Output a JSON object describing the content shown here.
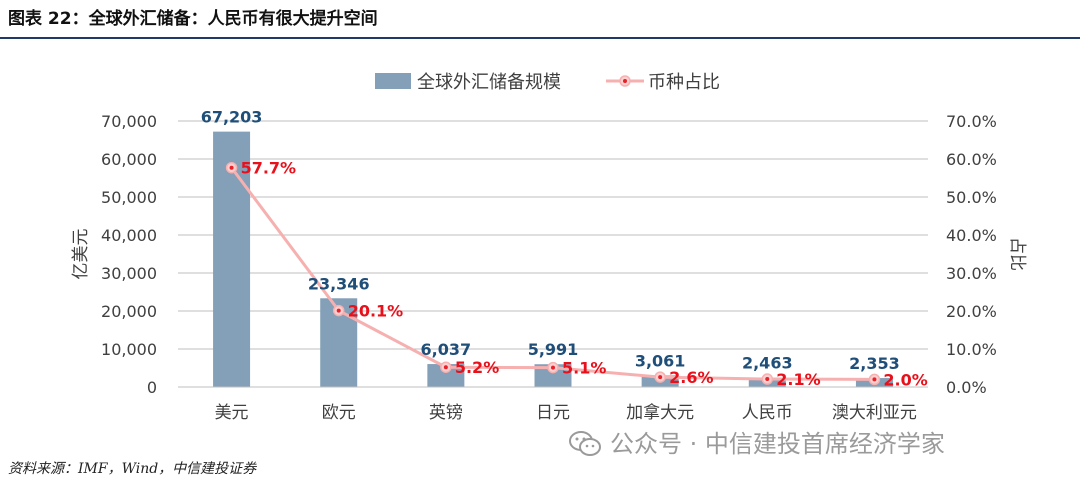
{
  "header": {
    "title": "图表 22：全球外汇储备：人民币有很大提升空间"
  },
  "footer": {
    "source": "资料来源：IMF，Wind，中信建投证券",
    "watermark": "公众号 · 中信建投首席经济学家"
  },
  "colors": {
    "bar": "#849fb8",
    "line": "#f7b0b0",
    "marker": "#e8222a",
    "bar_label": "#1f4e79",
    "pct_label": "#e8101a",
    "rule": "#1f3a68"
  },
  "chart_data": {
    "type": "bar",
    "categories": [
      "美元",
      "欧元",
      "英镑",
      "日元",
      "加拿大元",
      "人民币",
      "澳大利亚元"
    ],
    "series": [
      {
        "name": "全球外汇储备规模",
        "type": "bar",
        "axis": "left",
        "values": [
          67203,
          23346,
          6037,
          5991,
          3061,
          2463,
          2353
        ],
        "labels": [
          "67,203",
          "23,346",
          "6,037",
          "5,991",
          "3,061",
          "2,463",
          "2,353"
        ]
      },
      {
        "name": "币种占比",
        "type": "line",
        "axis": "right",
        "values": [
          57.7,
          20.1,
          5.2,
          5.1,
          2.6,
          2.1,
          2.0
        ],
        "labels": [
          "57.7%",
          "20.1%",
          "5.2%",
          "5.1%",
          "2.6%",
          "2.1%",
          "2.0%"
        ]
      }
    ],
    "ylabel": "亿美元",
    "y2label": "占比",
    "ylim": [
      0,
      70000
    ],
    "y2lim": [
      0,
      70
    ],
    "yticks": [
      "0",
      "10,000",
      "20,000",
      "30,000",
      "40,000",
      "50,000",
      "60,000",
      "70,000"
    ],
    "y2ticks": [
      "0.0%",
      "10.0%",
      "20.0%",
      "30.0%",
      "40.0%",
      "50.0%",
      "60.0%",
      "70.0%"
    ],
    "grid": true,
    "legend": "top"
  }
}
